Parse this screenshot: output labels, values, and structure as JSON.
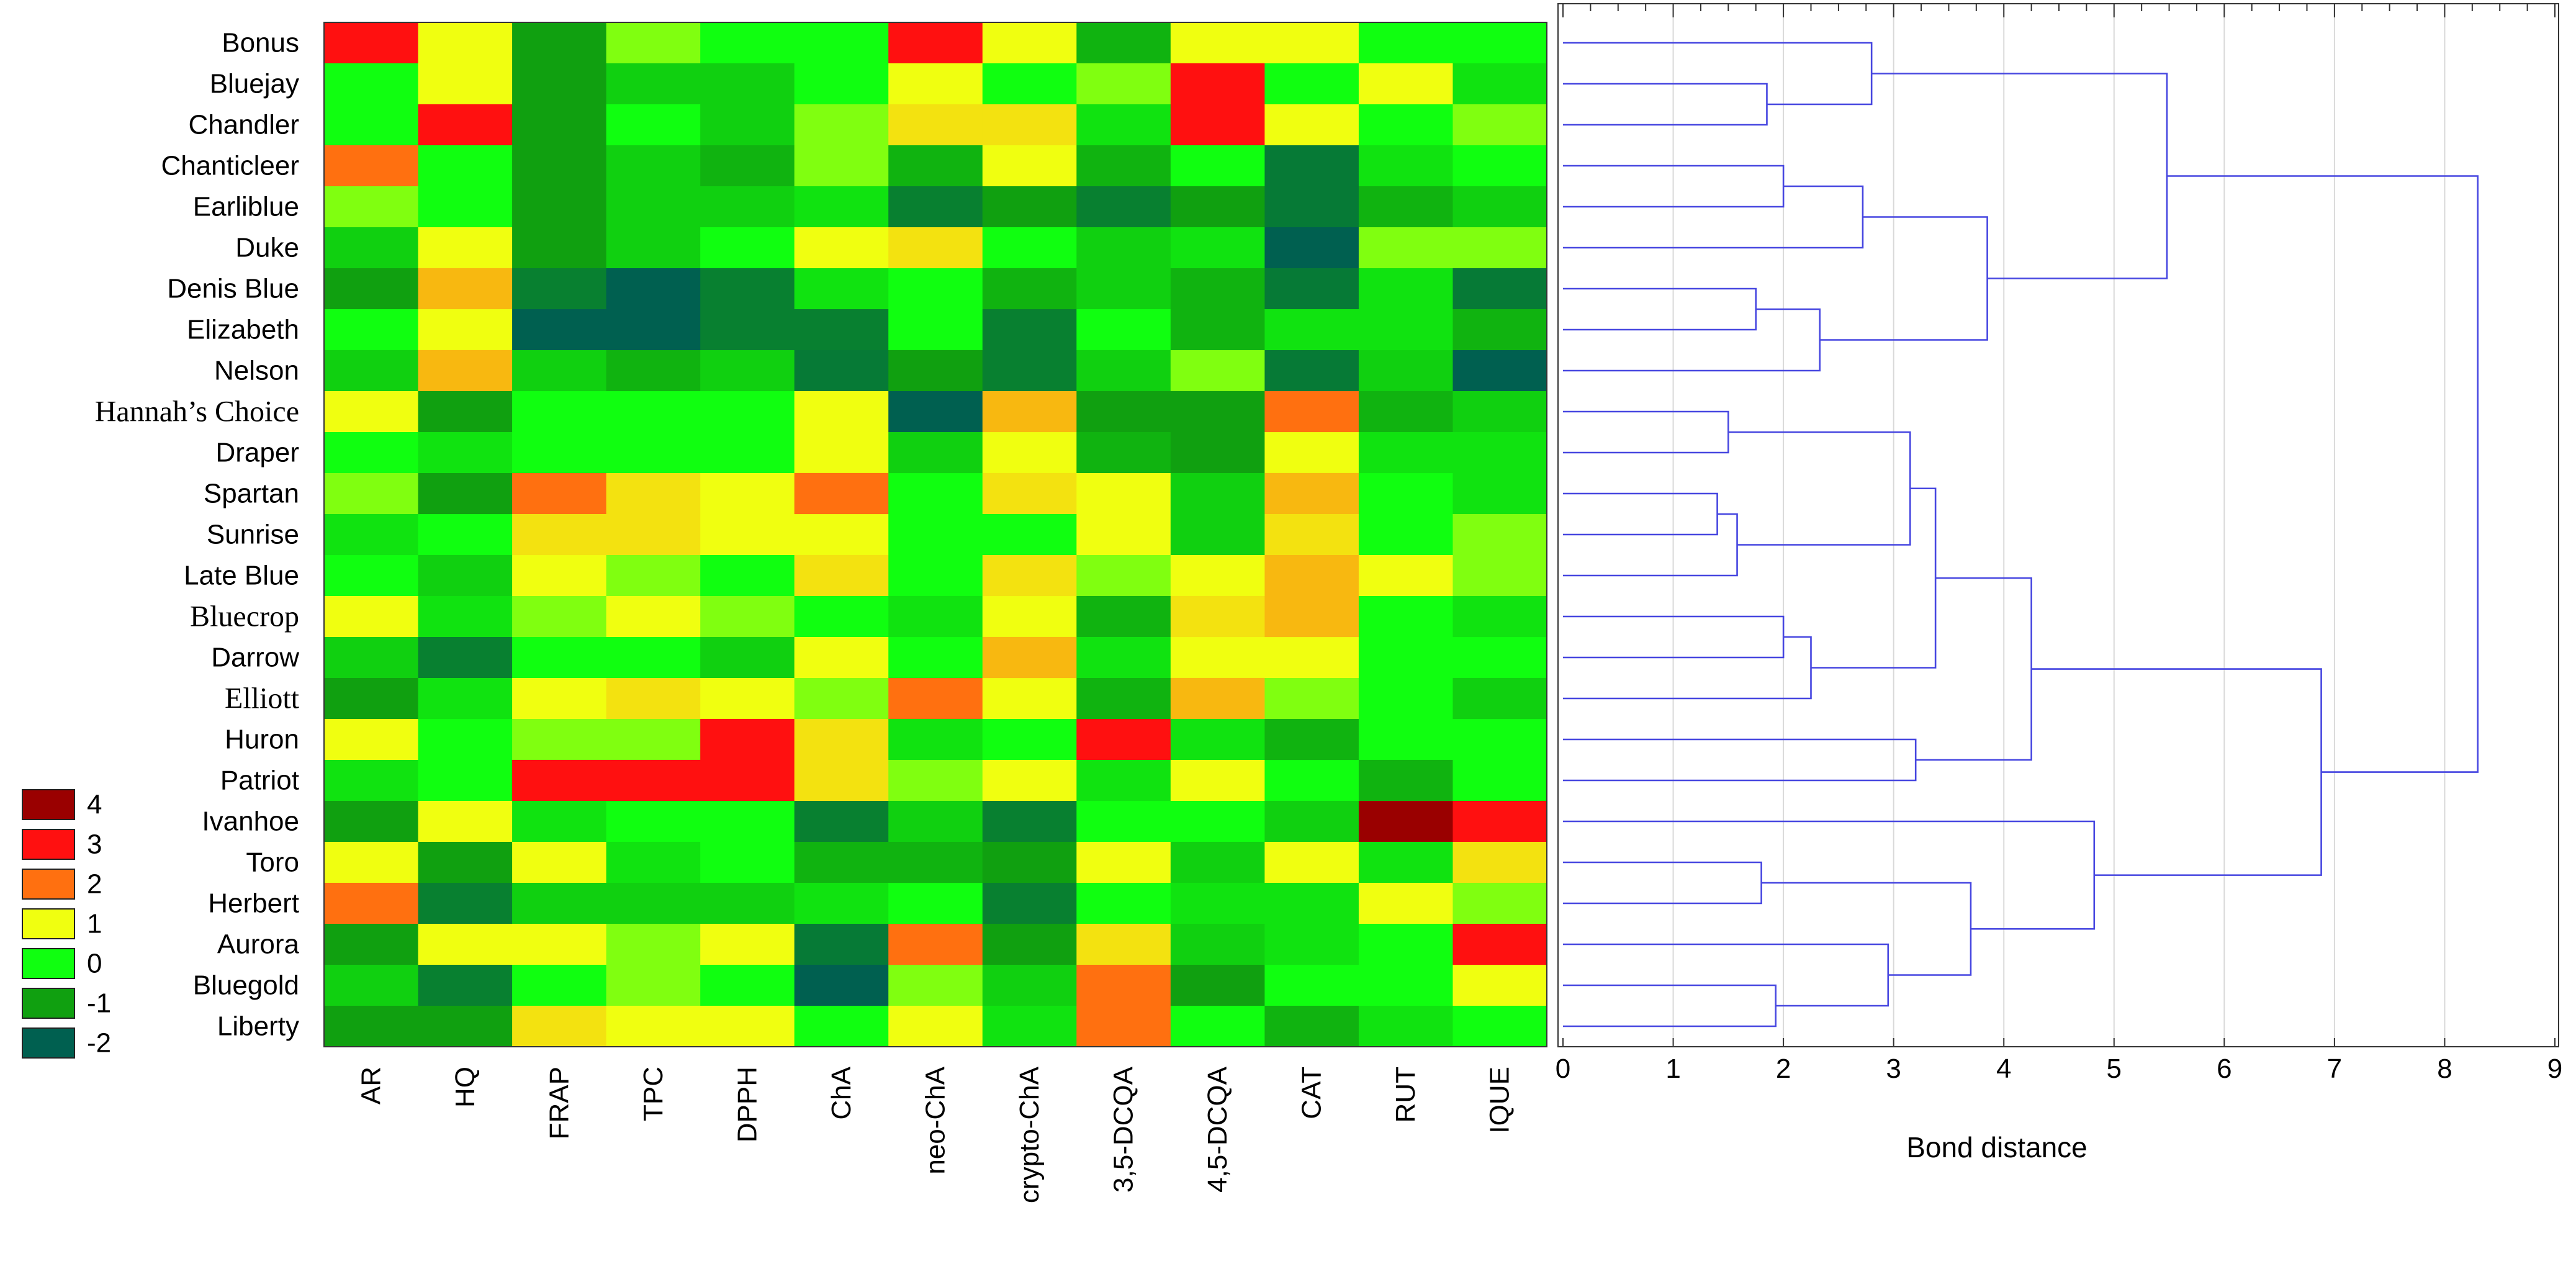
{
  "chart_data": [
    {
      "type": "heatmap",
      "title": "",
      "rows": [
        "Bonus",
        "Bluejay",
        "Chandler",
        "Chanticleer",
        "Earliblue",
        "Duke",
        "Denis Blue",
        "Elizabeth",
        "Nelson",
        "Hannah’s Choice",
        "Draper",
        "Spartan",
        "Sunrise",
        "Late Blue",
        "Bluecrop",
        "Darrow",
        "Elliott",
        "Huron",
        "Patriot",
        "Ivanhoe",
        "Toro",
        "Herbert",
        "Aurora",
        "Bluegold",
        "Liberty"
      ],
      "columns": [
        "AR",
        "HQ",
        "FRAP",
        "TPC",
        "DPPH",
        "ChA",
        "neo-ChA",
        "crypto-ChA",
        "3,5-DCQA",
        "4,5-DCQA",
        "CAT",
        "RUT",
        "IQUE"
      ],
      "values": [
        [
          3,
          1,
          -1,
          0.5,
          0,
          0,
          3,
          1,
          -0.8,
          1,
          1,
          0,
          0
        ],
        [
          0,
          1,
          -1,
          -0.5,
          -0.5,
          0,
          1,
          0,
          0.5,
          3,
          0,
          1,
          -0.3
        ],
        [
          0,
          3,
          -1,
          0,
          -0.5,
          0.5,
          1.2,
          1.2,
          -0.3,
          3,
          1,
          0,
          0.5
        ],
        [
          2,
          0,
          -1,
          -0.5,
          -0.8,
          0.5,
          -0.8,
          1,
          -0.8,
          0,
          -1.6,
          -0.3,
          0
        ],
        [
          0.5,
          0,
          -1,
          -0.5,
          -0.5,
          -0.3,
          -1.5,
          -1,
          -1.5,
          -1,
          -1.6,
          -0.8,
          -0.5
        ],
        [
          -0.5,
          1,
          -1,
          -0.5,
          0,
          1,
          1.2,
          0,
          -0.5,
          -0.3,
          -2,
          0.5,
          0.5
        ],
        [
          -1,
          1.5,
          -1.5,
          -2,
          -1.5,
          -0.3,
          0,
          -0.8,
          -0.5,
          -0.8,
          -1.6,
          -0.3,
          -1.6
        ],
        [
          0,
          1,
          -2,
          -2,
          -1.5,
          -1.5,
          0,
          -1.5,
          0,
          -0.8,
          -0.3,
          -0.3,
          -0.8
        ],
        [
          -0.5,
          1.5,
          -0.5,
          -0.8,
          -0.5,
          -1.6,
          -1,
          -1.5,
          -0.5,
          0.5,
          -1.6,
          -0.5,
          -2
        ],
        [
          1,
          -1,
          0,
          0,
          0,
          1,
          -2,
          1.5,
          -1,
          -1,
          2,
          -0.8,
          -0.5
        ],
        [
          0,
          -0.3,
          0,
          0,
          0,
          1,
          -0.5,
          1,
          -0.8,
          -1,
          1,
          -0.3,
          -0.3
        ],
        [
          0.5,
          -1,
          2,
          1.2,
          1,
          2,
          0,
          1.2,
          1,
          -0.5,
          1.5,
          0,
          -0.3
        ],
        [
          -0.3,
          0,
          1.2,
          1.2,
          1,
          1,
          0,
          0,
          1,
          -0.5,
          1.2,
          0,
          0.5
        ],
        [
          0,
          -0.5,
          1,
          0.5,
          0,
          1.2,
          0,
          1.2,
          0.5,
          1,
          1.5,
          1,
          0.5
        ],
        [
          1,
          -0.3,
          0.5,
          1,
          0.5,
          0,
          -0.3,
          1,
          -0.8,
          1.2,
          1.5,
          0,
          -0.3
        ],
        [
          -0.5,
          -1.5,
          0,
          0,
          -0.5,
          1,
          0,
          1.5,
          -0.3,
          1,
          1,
          0,
          0
        ],
        [
          -1,
          -0.3,
          1,
          1.2,
          1,
          0.5,
          2,
          1,
          -0.8,
          1.5,
          0.5,
          0,
          -0.5
        ],
        [
          1,
          0,
          0.5,
          0.5,
          3,
          1.2,
          -0.3,
          0,
          3,
          -0.3,
          -0.8,
          0,
          0
        ],
        [
          -0.3,
          0,
          3,
          3,
          3,
          1.2,
          0.5,
          1,
          -0.3,
          1,
          0,
          -0.8,
          0
        ],
        [
          -1,
          1,
          -0.3,
          0,
          0,
          -1.5,
          -0.5,
          -1.5,
          0,
          0,
          -0.5,
          4,
          3
        ],
        [
          1,
          -1,
          1,
          -0.3,
          0,
          -0.8,
          -0.8,
          -1,
          1,
          -0.5,
          1,
          -0.3,
          1.2
        ],
        [
          2,
          -1.5,
          -0.5,
          -0.5,
          -0.5,
          -0.3,
          0,
          -1.5,
          0,
          -0.3,
          -0.3,
          1,
          0.5
        ],
        [
          -1,
          1,
          1,
          0.5,
          1,
          -1.6,
          2,
          -1,
          1.2,
          -0.5,
          -0.3,
          0,
          3
        ],
        [
          -0.5,
          -1.5,
          0,
          0.5,
          0,
          -2,
          0.5,
          -0.5,
          2,
          -1,
          0,
          0,
          1
        ],
        [
          -1,
          -1,
          1.2,
          1,
          1,
          0,
          1,
          -0.3,
          2,
          0,
          -0.8,
          -0.3,
          0
        ]
      ],
      "legend": {
        "position": "left",
        "entries": [
          {
            "label": "4",
            "color": "#9a0000"
          },
          {
            "label": "3",
            "color": "#ff1010"
          },
          {
            "label": "2",
            "color": "#ff7010"
          },
          {
            "label": "1",
            "color": "#f0ff10"
          },
          {
            "label": "0",
            "color": "#10ff10"
          },
          {
            "label": "-1",
            "color": "#10a010"
          },
          {
            "label": "-2",
            "color": "#006050"
          }
        ]
      }
    },
    {
      "type": "dendrogram",
      "xlabel": "Bond distance",
      "xlim": [
        0,
        9
      ],
      "xticks": [
        "0",
        "1",
        "2",
        "3",
        "4",
        "5",
        "6",
        "7",
        "8",
        "9"
      ],
      "grid": true,
      "link_color": "#4646e0",
      "merges": [
        {
          "a": "Bluejay",
          "b": "Chandler",
          "height": 1.85
        },
        {
          "a": "Bonus",
          "b": "m0",
          "height": 2.8
        },
        {
          "a": "Chanticleer",
          "b": "Earliblue",
          "height": 2.0
        },
        {
          "a": "m2",
          "b": "Duke",
          "height": 2.72
        },
        {
          "a": "Denis Blue",
          "b": "Elizabeth",
          "height": 1.75
        },
        {
          "a": "m4",
          "b": "Nelson",
          "height": 2.33
        },
        {
          "a": "m3",
          "b": "m5",
          "height": 3.85
        },
        {
          "a": "m1",
          "b": "m6",
          "height": 5.48
        },
        {
          "a": "Hannah’s Choice",
          "b": "Draper",
          "height": 1.5
        },
        {
          "a": "Spartan",
          "b": "Sunrise",
          "height": 1.4
        },
        {
          "a": "m9",
          "b": "Late Blue",
          "height": 1.58
        },
        {
          "a": "m8",
          "b": "m10",
          "height": 3.15
        },
        {
          "a": "Bluecrop",
          "b": "Darrow",
          "height": 2.0
        },
        {
          "a": "m12",
          "b": "Elliott",
          "height": 2.25
        },
        {
          "a": "m11",
          "b": "m13",
          "height": 3.38
        },
        {
          "a": "Huron",
          "b": "Patriot",
          "height": 3.2
        },
        {
          "a": "m14",
          "b": "m15",
          "height": 4.25
        },
        {
          "a": "Toro",
          "b": "Herbert",
          "height": 1.8
        },
        {
          "a": "Bluegold",
          "b": "Liberty",
          "height": 1.93
        },
        {
          "a": "Aurora",
          "b": "m18",
          "height": 2.95
        },
        {
          "a": "m17",
          "b": "m19",
          "height": 3.7
        },
        {
          "a": "Ivanhoe",
          "b": "m20",
          "height": 4.82
        },
        {
          "a": "m16",
          "b": "m21",
          "height": 6.88
        },
        {
          "a": "m7",
          "b": "m22",
          "height": 8.3
        }
      ]
    }
  ]
}
